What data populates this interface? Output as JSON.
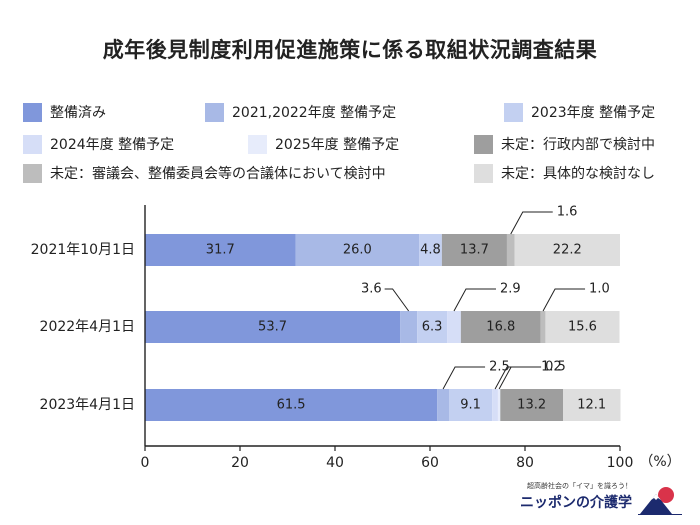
{
  "title": "成年後見制度利用促進施策に係る取組状況調査結果",
  "chart_data": {
    "type": "bar",
    "orientation": "horizontal",
    "stacked": true,
    "categories": [
      "2021年10月1日",
      "2022年4月1日",
      "2023年4月1日"
    ],
    "series": [
      {
        "name": "整備済み",
        "values": [
          31.7,
          53.7,
          61.5
        ],
        "color": "#8097db"
      },
      {
        "name": "2021,2022年度 整備予定",
        "values": [
          26.0,
          3.6,
          2.5
        ],
        "color": "#a8b9e6"
      },
      {
        "name": "2023年度 整備予定",
        "values": [
          4.8,
          6.3,
          9.1
        ],
        "color": "#c3d0f1"
      },
      {
        "name": "2024年度 整備予定",
        "values": [
          null,
          2.9,
          1.2
        ],
        "color": "#d6def7"
      },
      {
        "name": "2025年度 整備予定",
        "values": [
          null,
          null,
          0.5
        ],
        "color": "#e7ecfb"
      },
      {
        "name": "未定：行政内部で検討中",
        "values": [
          13.7,
          16.8,
          13.2
        ],
        "color": "#9e9e9e"
      },
      {
        "name": "未定：審議会、整備委員会等の合議体において検討中",
        "values": [
          1.6,
          1.0,
          null
        ],
        "color": "#bdbdbd"
      },
      {
        "name": "未定：具体的な検討なし",
        "values": [
          22.2,
          15.6,
          12.1
        ],
        "color": "#dedede"
      }
    ],
    "inside_labels": [
      [
        {
          "series": 0,
          "text": "31.7"
        },
        {
          "series": 1,
          "text": "26.0"
        },
        {
          "series": 2,
          "text": "4.8"
        },
        {
          "series": 5,
          "text": "13.7"
        },
        {
          "series": 7,
          "text": "22.2"
        }
      ],
      [
        {
          "series": 0,
          "text": "53.7"
        },
        {
          "series": 2,
          "text": "6.3"
        },
        {
          "series": 5,
          "text": "16.8"
        },
        {
          "series": 7,
          "text": "15.6"
        }
      ],
      [
        {
          "series": 0,
          "text": "61.5"
        },
        {
          "series": 2,
          "text": "9.1"
        },
        {
          "series": 5,
          "text": "13.2"
        },
        {
          "series": 7,
          "text": "12.1"
        }
      ]
    ],
    "callouts": [
      {
        "row": 0,
        "series": 6,
        "text": "1.6",
        "side": "right"
      },
      {
        "row": 1,
        "series": 1,
        "text": "3.6",
        "side": "left"
      },
      {
        "row": 1,
        "series": 3,
        "text": "2.9",
        "side": "right"
      },
      {
        "row": 1,
        "series": 6,
        "text": "1.0",
        "side": "right"
      },
      {
        "row": 2,
        "series": 1,
        "text": "2.5",
        "side": "right"
      },
      {
        "row": 2,
        "series": 3,
        "text": "1.2",
        "side": "right"
      },
      {
        "row": 2,
        "series": 4,
        "text": "0.5",
        "side": "right"
      }
    ],
    "x_ticks": [
      "0",
      "20",
      "40",
      "60",
      "80",
      "100"
    ],
    "xlim": [
      0,
      100
    ],
    "x_unit": "（%）",
    "grid": false,
    "legend_position": "top"
  },
  "legend": {
    "items": [
      {
        "label": "整備済み",
        "color": "#8097db"
      },
      {
        "label": "2021,2022年度 整備予定",
        "color": "#a8b9e6"
      },
      {
        "label": "2023年度 整備予定",
        "color": "#c3d0f1"
      },
      {
        "label": "2024年度 整備予定",
        "color": "#d6def7"
      },
      {
        "label": "2025年度 整備予定",
        "color": "#e7ecfb"
      },
      {
        "label": "未定：行政内部で検討中",
        "color": "#9e9e9e"
      },
      {
        "label": "未定：審議会、整備委員会等の合議体において検討中",
        "color": "#bdbdbd"
      },
      {
        "label": "未定：具体的な検討なし",
        "color": "#dedede"
      }
    ]
  },
  "brand": {
    "tagline": "超高齢社会の「イマ」を識ろう！",
    "name": "ニッポンの介護学",
    "mark_icon": "mount-fuji-icon"
  }
}
